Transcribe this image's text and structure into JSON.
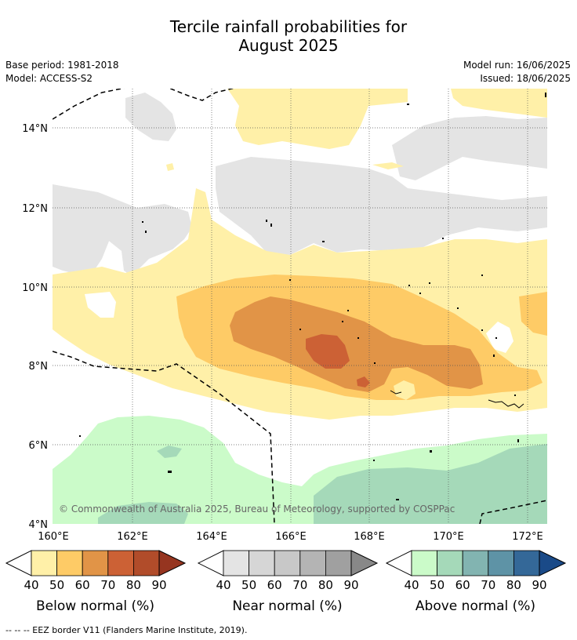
{
  "title_line1": "Tercile rainfall probabilities for",
  "title_line2": "August 2025",
  "meta": {
    "base_period": "Base period: 1981-2018",
    "model": "Model: ACCESS-S2",
    "model_run": "Model run: 16/06/2025",
    "issued": "Issued: 18/06/2025"
  },
  "map": {
    "lat_labels": [
      "14°N",
      "12°N",
      "10°N",
      "8°N",
      "6°N",
      "4°N"
    ],
    "lon_labels": [
      "160°E",
      "162°E",
      "164°E",
      "166°E",
      "168°E",
      "170°E",
      "172°E"
    ],
    "copyright": "© Commonwealth of Australia 2025, Bureau of Meteorology, supported by COSPPac"
  },
  "colorbars": [
    {
      "name": "below",
      "label": "Below normal (%)",
      "ticks": [
        "40",
        "50",
        "60",
        "70",
        "80",
        "90"
      ],
      "colors": [
        "#fff0a8",
        "#fecb66",
        "#e19447",
        "#cc6135",
        "#b14c2a",
        "#963520"
      ]
    },
    {
      "name": "near",
      "label": "Near normal (%)",
      "ticks": [
        "40",
        "50",
        "60",
        "70",
        "80",
        "90"
      ],
      "colors": [
        "#e4e4e4",
        "#d6d6d6",
        "#c8c8c8",
        "#b4b4b4",
        "#a0a0a0",
        "#888888"
      ]
    },
    {
      "name": "above",
      "label": "Above normal (%)",
      "ticks": [
        "40",
        "50",
        "60",
        "70",
        "80",
        "90"
      ],
      "colors": [
        "#cbfbc9",
        "#a5d9b9",
        "#82b4b1",
        "#5e93a6",
        "#346898",
        "#1a4a88"
      ]
    }
  ],
  "footnote": "-- -- -- EEZ border V11 (Flanders Marine Institute, 2019)."
}
